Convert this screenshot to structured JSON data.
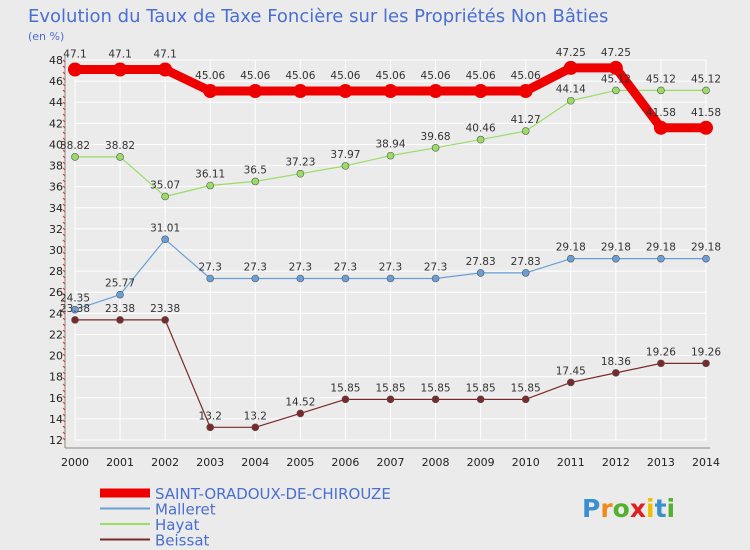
{
  "chart_data": {
    "type": "line",
    "title": "Evolution du Taux de Taxe Foncière sur les Propriétés Non Bâties",
    "subtitle": "(en %)",
    "x": [
      "2000",
      "2001",
      "2002",
      "2003",
      "2004",
      "2005",
      "2006",
      "2007",
      "2008",
      "2009",
      "2010",
      "2011",
      "2012",
      "2013",
      "2014"
    ],
    "ylim": [
      12,
      48
    ],
    "yticks": [
      12,
      14,
      16,
      18,
      20,
      22,
      24,
      26,
      28,
      30,
      32,
      34,
      36,
      38,
      40,
      42,
      44,
      46,
      48
    ],
    "grid": true,
    "legend_position": "bottom-left",
    "series": [
      {
        "name": "SAINT-ORADOUX-DE-CHIROUZE",
        "color": "#ee0000",
        "values": [
          47.1,
          47.1,
          47.1,
          45.06,
          45.06,
          45.06,
          45.06,
          45.06,
          45.06,
          45.06,
          45.06,
          47.25,
          47.25,
          41.58,
          41.58
        ],
        "labels": [
          "47.1",
          "47.1",
          "47.1",
          "45.06",
          "45.06",
          "45.06",
          "45.06",
          "45.06",
          "45.06",
          "45.06",
          "45.06",
          "47.25",
          "47.25",
          "41.58",
          "41.58"
        ]
      },
      {
        "name": "Malleret",
        "color": "#6a9fd6",
        "values": [
          24.35,
          25.77,
          31.01,
          27.3,
          27.3,
          27.3,
          27.3,
          27.3,
          27.3,
          27.83,
          27.83,
          29.18,
          29.18,
          29.18,
          29.18
        ],
        "labels": [
          "24.35",
          "25.77",
          "31.01",
          "27.3",
          "27.3",
          "27.3",
          "27.3",
          "27.3",
          "27.3",
          "27.83",
          "27.83",
          "29.18",
          "29.18",
          "29.18",
          "29.18"
        ]
      },
      {
        "name": "Hayat",
        "color": "#99dd66",
        "values": [
          38.82,
          38.82,
          35.07,
          36.11,
          36.5,
          37.23,
          37.97,
          38.94,
          39.68,
          40.46,
          41.27,
          44.14,
          45.12,
          45.12,
          45.12
        ],
        "labels": [
          "38.82",
          "38.82",
          "35.07",
          "36.11",
          "36.5",
          "37.23",
          "37.97",
          "38.94",
          "39.68",
          "40.46",
          "41.27",
          "44.14",
          "45.12",
          "45.12",
          "45.12"
        ]
      },
      {
        "name": "Beissat",
        "color": "#7a2a2a",
        "values": [
          23.38,
          23.38,
          23.38,
          13.2,
          13.2,
          14.52,
          15.85,
          15.85,
          15.85,
          15.85,
          15.85,
          17.45,
          18.36,
          19.26,
          19.26
        ],
        "labels": [
          "23.38",
          "23.38",
          "23.38",
          "13.2",
          "13.2",
          "14.52",
          "15.85",
          "15.85",
          "15.85",
          "15.85",
          "15.85",
          "17.45",
          "18.36",
          "19.26",
          "19.26"
        ]
      }
    ]
  },
  "logo": {
    "text": "Proxiti",
    "letter_colors": [
      "#3a8fd0",
      "#f08a1a",
      "#55b030",
      "#e02020",
      "#f0c000",
      "#3a8fd0",
      "#55b030"
    ]
  }
}
